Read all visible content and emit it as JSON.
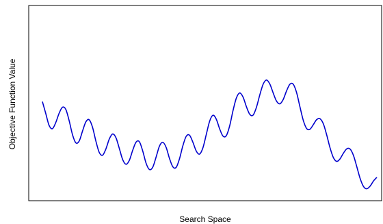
{
  "chart_data": {
    "type": "line",
    "title": "",
    "xlabel": "Search Space",
    "ylabel": "Objective Function Value",
    "grid": false,
    "legend": "none",
    "xticks_visible": false,
    "yticks_visible": false,
    "xlim": [
      0,
      1
    ],
    "ylim": [
      0,
      1
    ],
    "series": [
      {
        "color": "#0000cc",
        "x": [
          0.0,
          0.01,
          0.02,
          0.03,
          0.04,
          0.05,
          0.06,
          0.07,
          0.08,
          0.09,
          0.1,
          0.11,
          0.12,
          0.13,
          0.14,
          0.15,
          0.16,
          0.17,
          0.18,
          0.19,
          0.2,
          0.21,
          0.22,
          0.23,
          0.24,
          0.25,
          0.26,
          0.27,
          0.28,
          0.29,
          0.3,
          0.31,
          0.32,
          0.33,
          0.34,
          0.35,
          0.36,
          0.37,
          0.38,
          0.39,
          0.4,
          0.41,
          0.42,
          0.43,
          0.44,
          0.45,
          0.46,
          0.47,
          0.48,
          0.49,
          0.5,
          0.51,
          0.52,
          0.53,
          0.54,
          0.55,
          0.56,
          0.57,
          0.58,
          0.59,
          0.6,
          0.61,
          0.62,
          0.63,
          0.64,
          0.65,
          0.66,
          0.67,
          0.68,
          0.69,
          0.7,
          0.71,
          0.72,
          0.73,
          0.74,
          0.75,
          0.76,
          0.77,
          0.78,
          0.79,
          0.8,
          0.81,
          0.82,
          0.83,
          0.84,
          0.85,
          0.86,
          0.87,
          0.88,
          0.89,
          0.9,
          0.91,
          0.92,
          0.93,
          0.94,
          0.95,
          0.96,
          0.97,
          0.98,
          0.99,
          1.0
        ],
        "y": [
          0.508,
          0.443,
          0.377,
          0.359,
          0.393,
          0.444,
          0.477,
          0.465,
          0.403,
          0.326,
          0.281,
          0.291,
          0.346,
          0.397,
          0.408,
          0.366,
          0.29,
          0.228,
          0.213,
          0.248,
          0.302,
          0.33,
          0.309,
          0.25,
          0.189,
          0.163,
          0.185,
          0.24,
          0.285,
          0.287,
          0.236,
          0.169,
          0.134,
          0.147,
          0.203,
          0.263,
          0.284,
          0.256,
          0.195,
          0.149,
          0.146,
          0.194,
          0.265,
          0.317,
          0.323,
          0.284,
          0.236,
          0.219,
          0.254,
          0.327,
          0.4,
          0.433,
          0.411,
          0.358,
          0.318,
          0.321,
          0.375,
          0.459,
          0.528,
          0.556,
          0.533,
          0.48,
          0.438,
          0.434,
          0.477,
          0.545,
          0.604,
          0.627,
          0.605,
          0.556,
          0.511,
          0.496,
          0.52,
          0.567,
          0.604,
          0.604,
          0.558,
          0.48,
          0.405,
          0.36,
          0.356,
          0.381,
          0.409,
          0.414,
          0.386,
          0.325,
          0.254,
          0.2,
          0.179,
          0.193,
          0.224,
          0.248,
          0.247,
          0.212,
          0.15,
          0.085,
          0.041,
          0.028,
          0.043,
          0.071,
          0.091
        ]
      }
    ]
  }
}
